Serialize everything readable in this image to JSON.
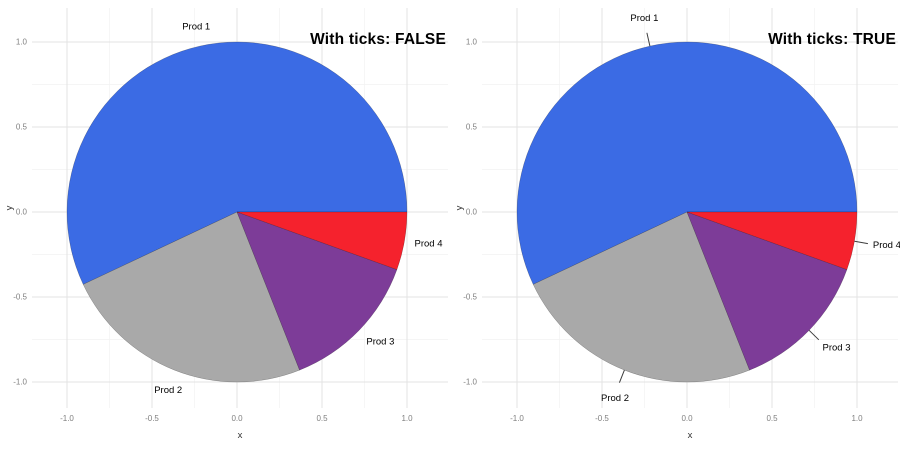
{
  "page": {
    "background": "#ffffff"
  },
  "chart_data": [
    {
      "type": "pie",
      "title": "With ticks: FALSE",
      "labels": [
        "Prod 1",
        "Prod 2",
        "Prod 3",
        "Prod 4"
      ],
      "values": [
        57,
        24,
        13.5,
        5.5
      ],
      "colors": [
        "#3B6BE4",
        "#A9A9A9",
        "#7D3C98",
        "#F5222D"
      ],
      "start_angle_deg": 0,
      "direction": "counterclockwise",
      "leader_ticks": false,
      "xlabel": "x",
      "ylabel": "y",
      "xlim": [
        -1,
        1
      ],
      "ylim": [
        -1,
        1
      ],
      "axis_ticks": [
        -1.0,
        -0.5,
        0.0,
        0.5,
        1.0
      ],
      "grid": true,
      "legend": "none"
    },
    {
      "type": "pie",
      "title": "With ticks: TRUE",
      "labels": [
        "Prod 1",
        "Prod 2",
        "Prod 3",
        "Prod 4"
      ],
      "values": [
        57,
        24,
        13.5,
        5.5
      ],
      "colors": [
        "#3B6BE4",
        "#A9A9A9",
        "#7D3C98",
        "#F5222D"
      ],
      "start_angle_deg": 0,
      "direction": "counterclockwise",
      "leader_ticks": true,
      "xlabel": "x",
      "ylabel": "y",
      "xlim": [
        -1,
        1
      ],
      "ylim": [
        -1,
        1
      ],
      "axis_ticks": [
        -1.0,
        -0.5,
        0.0,
        0.5,
        1.0
      ],
      "grid": true,
      "legend": "none"
    }
  ]
}
